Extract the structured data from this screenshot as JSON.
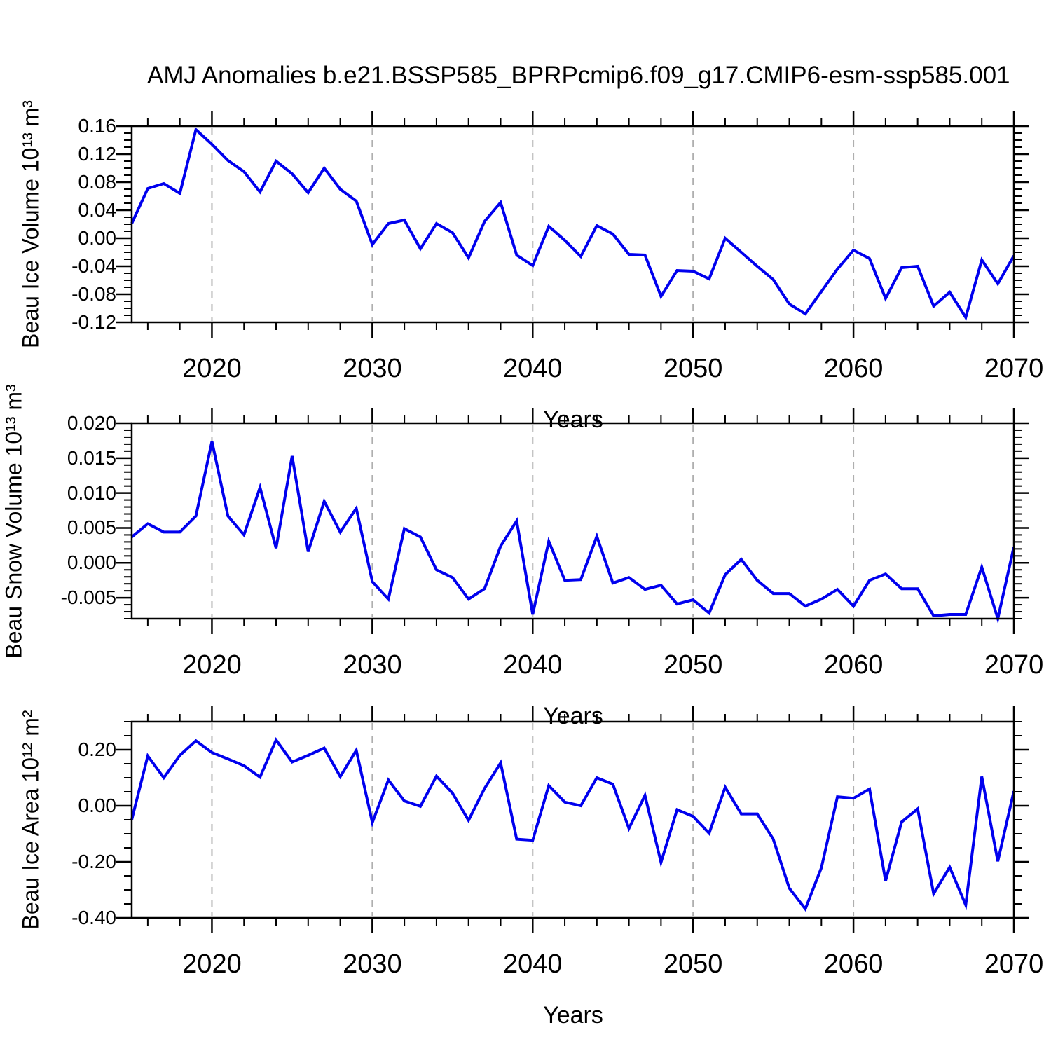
{
  "title": "AMJ Anomalies b.e21.BSSP585_BPRPcmip6.f09_g17.CMIP6-esm-ssp585.001",
  "colors": {
    "line": "#0000EE",
    "grid": "#AFAFAF",
    "frame": "#000000",
    "background": "#FFFFFF",
    "text": "#000000"
  },
  "years": [
    2015,
    2016,
    2017,
    2018,
    2019,
    2020,
    2021,
    2022,
    2023,
    2024,
    2025,
    2026,
    2027,
    2028,
    2029,
    2030,
    2031,
    2032,
    2033,
    2034,
    2035,
    2036,
    2037,
    2038,
    2039,
    2040,
    2041,
    2042,
    2043,
    2044,
    2045,
    2046,
    2047,
    2048,
    2049,
    2050,
    2051,
    2052,
    2053,
    2054,
    2055,
    2056,
    2057,
    2058,
    2059,
    2060,
    2061,
    2062,
    2063,
    2064,
    2065,
    2066,
    2067,
    2068,
    2069,
    2070
  ],
  "chart_data": [
    {
      "type": "line",
      "title": "",
      "ylabel": "Beau Ice Volume 10¹³ m³",
      "xlabel": "Years",
      "xlim": [
        2015,
        2070
      ],
      "xticks": [
        2020,
        2030,
        2040,
        2050,
        2060,
        2070
      ],
      "xminor_step": 2,
      "gridlines_x": [
        2020,
        2030,
        2040,
        2050,
        2060
      ],
      "ylim": [
        -0.12,
        0.16
      ],
      "yticks": [
        0.16,
        0.12,
        0.08,
        0.04,
        0.0,
        -0.04,
        -0.08,
        -0.12
      ],
      "yminor_step": 0.01,
      "ytick_decimals": 2,
      "values": [
        0.021,
        0.071,
        0.078,
        0.064,
        0.155,
        0.134,
        0.111,
        0.095,
        0.066,
        0.11,
        0.092,
        0.065,
        0.1,
        0.07,
        0.053,
        -0.009,
        0.021,
        0.026,
        -0.015,
        0.021,
        0.008,
        -0.028,
        0.024,
        0.051,
        -0.024,
        -0.039,
        0.017,
        -0.003,
        -0.026,
        0.018,
        0.006,
        -0.023,
        -0.024,
        -0.083,
        -0.046,
        -0.047,
        -0.058,
        0.0,
        -0.02,
        -0.04,
        -0.059,
        -0.094,
        -0.108,
        -0.076,
        -0.044,
        -0.017,
        -0.029,
        -0.086,
        -0.042,
        -0.04,
        -0.097,
        -0.077,
        -0.113,
        -0.031,
        -0.065,
        -0.025
      ]
    },
    {
      "type": "line",
      "title": "",
      "ylabel": "Beau Snow Volume 10¹³ m³",
      "xlabel": "Years",
      "xlim": [
        2015,
        2070
      ],
      "xticks": [
        2020,
        2030,
        2040,
        2050,
        2060,
        2070
      ],
      "xminor_step": 2,
      "gridlines_x": [
        2020,
        2030,
        2040,
        2050,
        2060
      ],
      "ylim": [
        -0.008,
        0.02
      ],
      "yticks": [
        0.02,
        0.015,
        0.01,
        0.005,
        0.0,
        -0.005
      ],
      "yminor_step": 0.001,
      "ytick_decimals": 3,
      "values": [
        0.0037,
        0.0056,
        0.0044,
        0.0044,
        0.0067,
        0.0174,
        0.0067,
        0.004,
        0.0108,
        0.0021,
        0.0153,
        0.0016,
        0.0088,
        0.0044,
        0.0078,
        -0.0027,
        -0.0052,
        0.0049,
        0.0037,
        -0.001,
        -0.0021,
        -0.0052,
        -0.0037,
        0.0024,
        0.006,
        -0.0074,
        0.0031,
        -0.0025,
        -0.0024,
        0.0038,
        -0.0029,
        -0.0021,
        -0.0038,
        -0.0032,
        -0.0059,
        -0.0053,
        -0.0072,
        -0.0017,
        0.0005,
        -0.0025,
        -0.0044,
        -0.0044,
        -0.0062,
        -0.0052,
        -0.0038,
        -0.0062,
        -0.0025,
        -0.0016,
        -0.0037,
        -0.0037,
        -0.0076,
        -0.0074,
        -0.0074,
        -0.0006,
        -0.008,
        0.0023
      ]
    },
    {
      "type": "line",
      "title": "",
      "ylabel": "Beau Ice Area 10¹² m²",
      "xlabel": "Years",
      "xlim": [
        2015,
        2070
      ],
      "xticks": [
        2020,
        2030,
        2040,
        2050,
        2060,
        2070
      ],
      "xminor_step": 2,
      "gridlines_x": [
        2020,
        2030,
        2040,
        2050,
        2060
      ],
      "ylim": [
        -0.4,
        0.3
      ],
      "yticks": [
        0.2,
        0.0,
        -0.2,
        -0.4
      ],
      "yminor_step": 0.05,
      "ytick_decimals": 2,
      "values": [
        -0.05,
        0.178,
        0.1,
        0.18,
        0.232,
        0.19,
        0.167,
        0.143,
        0.102,
        0.235,
        0.156,
        0.18,
        0.206,
        0.104,
        0.198,
        -0.06,
        0.092,
        0.017,
        -0.002,
        0.106,
        0.045,
        -0.052,
        0.062,
        0.153,
        -0.119,
        -0.123,
        0.072,
        0.013,
        0.0,
        0.1,
        0.077,
        -0.081,
        0.037,
        -0.202,
        -0.014,
        -0.038,
        -0.098,
        0.066,
        -0.029,
        -0.029,
        -0.119,
        -0.294,
        -0.368,
        -0.221,
        0.032,
        0.027,
        0.06,
        -0.268,
        -0.058,
        -0.011,
        -0.314,
        -0.219,
        -0.354,
        0.104,
        -0.198,
        0.052
      ]
    }
  ]
}
